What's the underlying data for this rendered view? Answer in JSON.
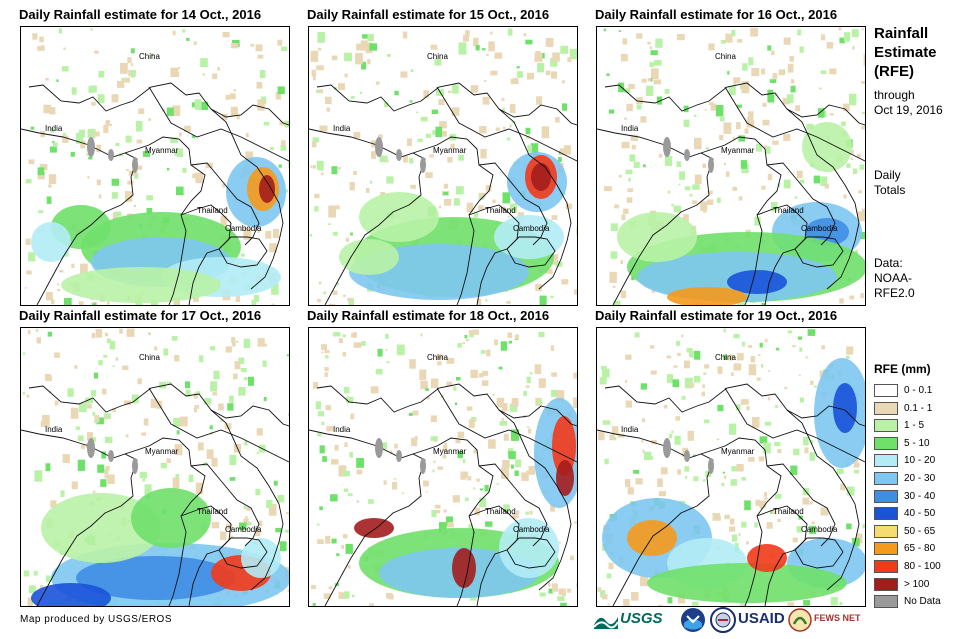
{
  "panels": [
    {
      "title": "Daily Rainfall estimate for 14 Oct., 2016"
    },
    {
      "title": "Daily Rainfall estimate for 15 Oct., 2016"
    },
    {
      "title": "Daily Rainfall estimate for 16 Oct., 2016"
    },
    {
      "title": "Daily Rainfall estimate for 17 Oct., 2016"
    },
    {
      "title": "Daily Rainfall estimate for 18 Oct., 2016"
    },
    {
      "title": "Daily Rainfall estimate for 19 Oct., 2016"
    }
  ],
  "map_labels": {
    "china": "China",
    "india": "India",
    "myanmar": "Myanmar",
    "thailand": "Thailand",
    "cambodia": "Cambodia"
  },
  "sidebar": {
    "title": "Rainfall\nEstimate\n(RFE)",
    "through": "through\nOct 19, 2016",
    "period": "Daily\nTotals",
    "source": "Data:\nNOAA-\nRFE2.0"
  },
  "legend": {
    "title": "RFE (mm)",
    "items": [
      {
        "label": "0 - 0.1",
        "color": "#ffffff"
      },
      {
        "label": "0.1 - 1",
        "color": "#ead7b5"
      },
      {
        "label": "1 - 5",
        "color": "#b9f2a6"
      },
      {
        "label": "5 - 10",
        "color": "#6fe06a"
      },
      {
        "label": "10 - 20",
        "color": "#b3ecf5"
      },
      {
        "label": "20 - 30",
        "color": "#7ec7f1"
      },
      {
        "label": "30 - 40",
        "color": "#3f8ee6"
      },
      {
        "label": "40 - 50",
        "color": "#1a52d9"
      },
      {
        "label": "50 - 65",
        "color": "#f5dc72"
      },
      {
        "label": "65 - 80",
        "color": "#f59a1b"
      },
      {
        "label": "80 - 100",
        "color": "#f23a1a"
      },
      {
        "label": "> 100",
        "color": "#a31d1d"
      },
      {
        "label": "No Data",
        "color": "#9a9a9a"
      }
    ]
  },
  "footer": {
    "credit": "Map produced by USGS/EROS"
  },
  "logos": {
    "usgs": "USGS",
    "usaid": "USAID",
    "fews": "FEWS NET"
  }
}
